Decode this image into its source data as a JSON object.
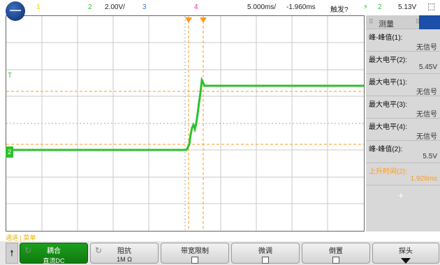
{
  "topbar": {
    "ch1": "1",
    "ch2": "2",
    "ch2_scale": "2.00V/",
    "ch3": "3",
    "ch4": "4",
    "timebase": "5.000ms/",
    "delay": "-1.960ms",
    "trigger_status": "触发?",
    "trigger_symbol": "⚡",
    "trigger_channel": "2",
    "trigger_level": "5.13V"
  },
  "measure_panel": {
    "title": "测量",
    "items": [
      {
        "label": "峰-峰值(1):",
        "value": "无信号"
      },
      {
        "label": "最大电平(2):",
        "value": "5.45V"
      },
      {
        "label": "最大电平(1):",
        "value": "无信号"
      },
      {
        "label": "最大电平(3):",
        "value": "无信号"
      },
      {
        "label": "最大电平(4):",
        "value": "无信号"
      },
      {
        "label": "峰-峰值(2):",
        "value": "5.5V"
      },
      {
        "label": "上升时间(2):",
        "value": "1.926ms"
      }
    ],
    "add_symbol": "+"
  },
  "markers": {
    "trigger_left": "T",
    "ground_left": "2"
  },
  "softkeys": {
    "breadcrumb": "通道 | 菜单",
    "coupling_title": "耦合",
    "coupling_value": "直流DC",
    "impedance_title": "阻抗",
    "impedance_value": "1M Ω",
    "bw_limit_title": "带宽限制",
    "fine_title": "微调",
    "invert_title": "倒置",
    "probe_title": "探头"
  },
  "colors": {
    "ch1": "#e8d800",
    "ch2": "#2cc12c",
    "ch3": "#3a7bd5",
    "ch4": "#e030a0",
    "cursor": "#ff9a1e"
  }
}
